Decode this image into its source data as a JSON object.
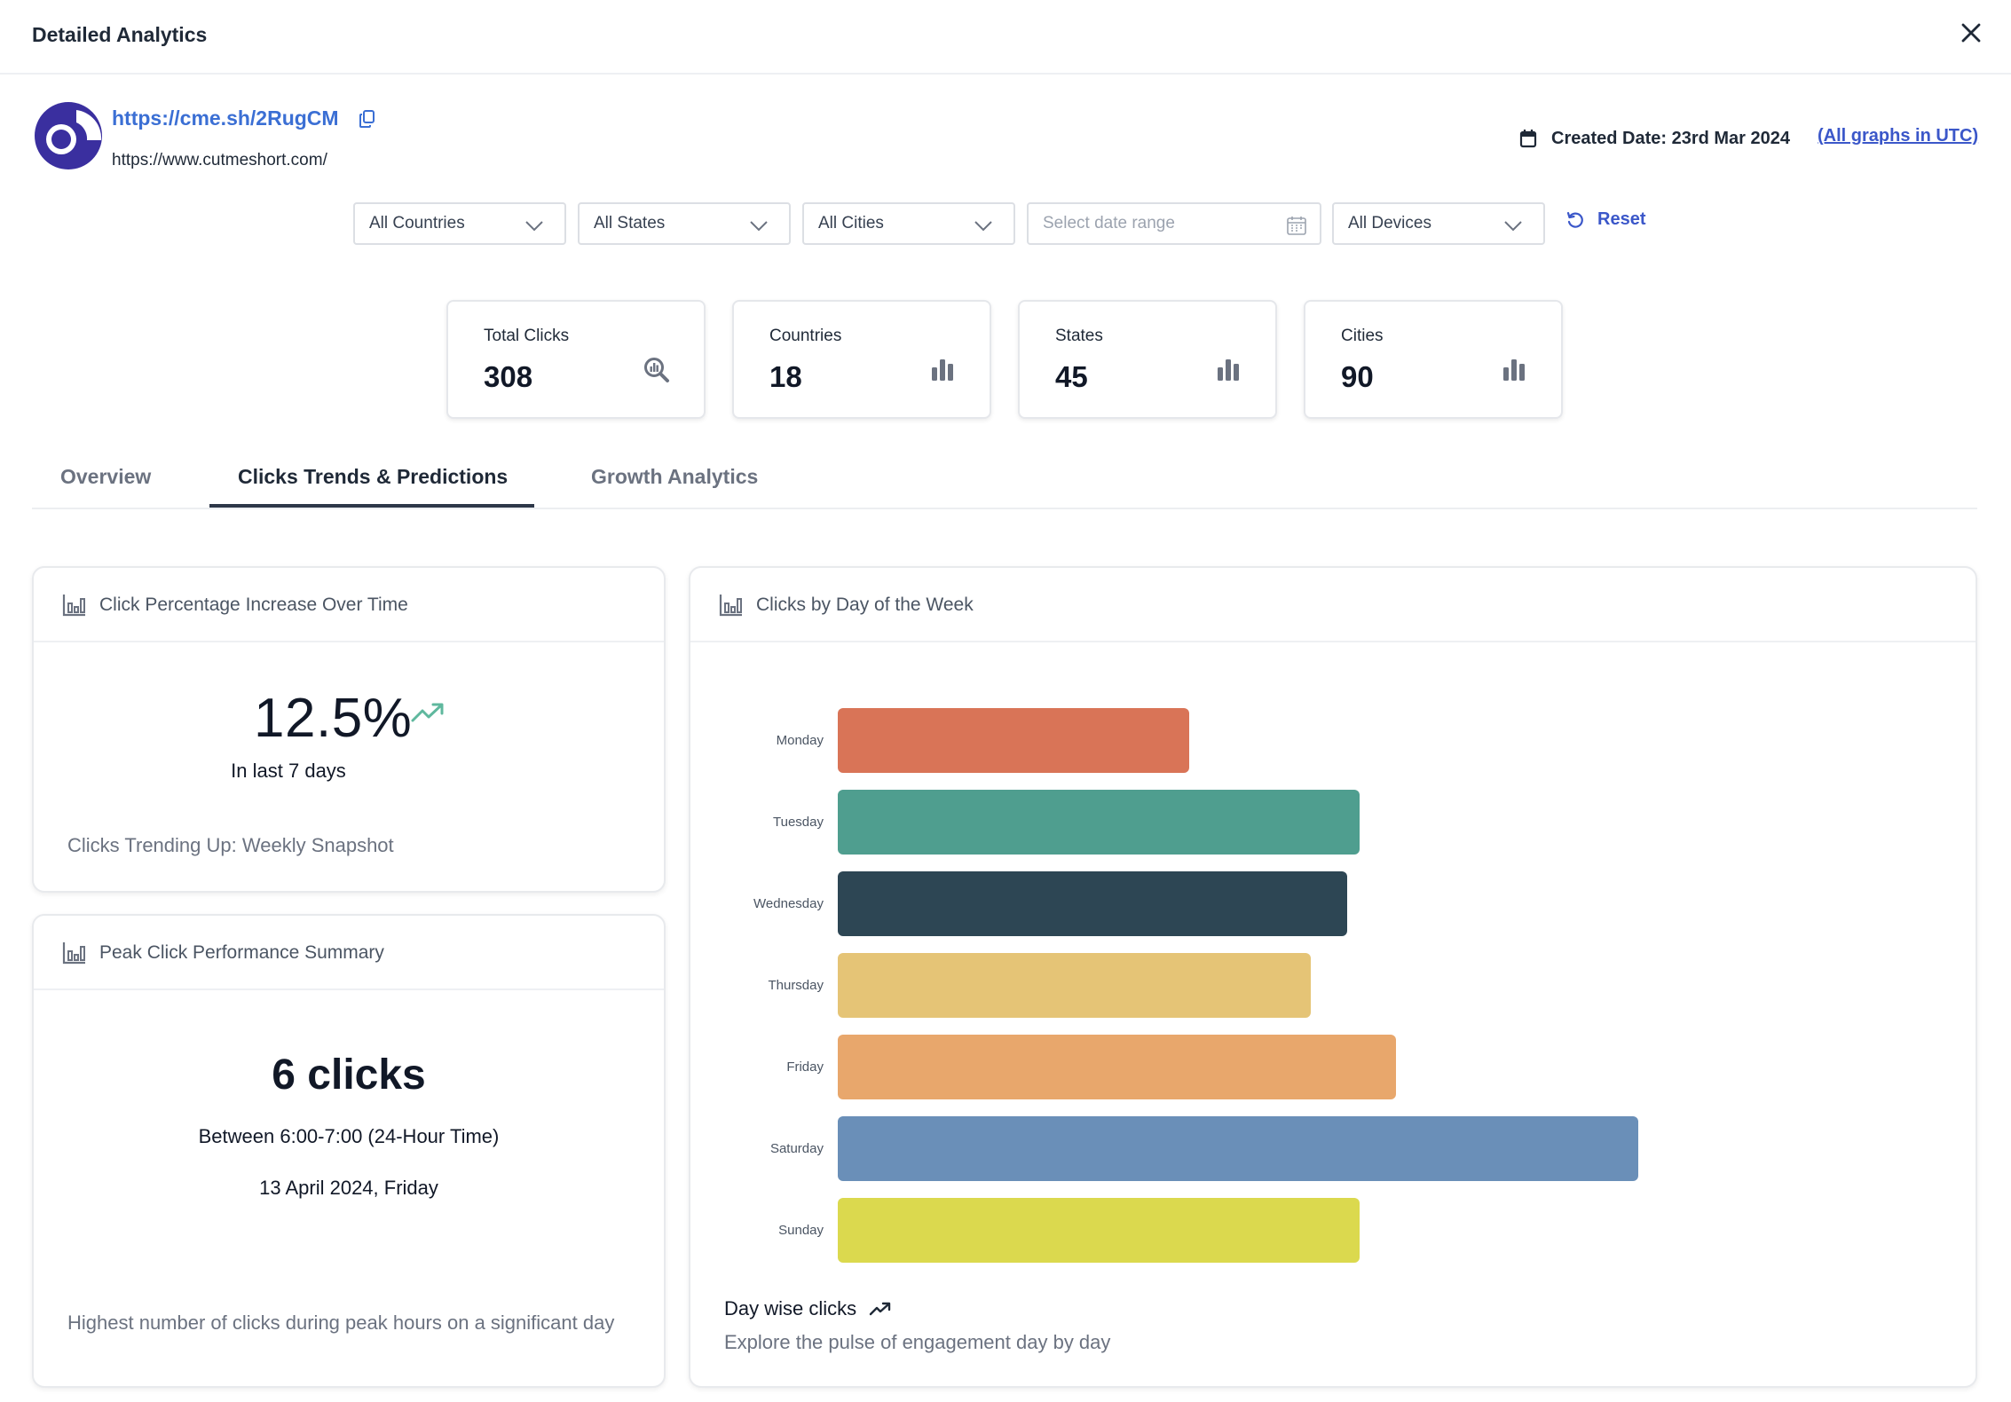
{
  "header": {
    "title": "Detailed Analytics"
  },
  "link": {
    "short_url": "https://cme.sh/2RugCM",
    "long_url": "https://www.cutmeshort.com/",
    "created_label": "Created Date: 23rd Mar 2024",
    "utc_link": "(All graphs in UTC)"
  },
  "filters": {
    "countries": "All Countries",
    "states": "All States",
    "cities": "All Cities",
    "date_placeholder": "Select date range",
    "devices": "All Devices",
    "reset": "Reset"
  },
  "stats": [
    {
      "label": "Total Clicks",
      "value": "308",
      "icon": "search-chart-icon"
    },
    {
      "label": "Countries",
      "value": "18",
      "icon": "bar-chart-icon"
    },
    {
      "label": "States",
      "value": "45",
      "icon": "bar-chart-icon"
    },
    {
      "label": "Cities",
      "value": "90",
      "icon": "bar-chart-icon"
    }
  ],
  "tabs": [
    {
      "label": "Overview",
      "active": false
    },
    {
      "label": "Clicks Trends & Predictions",
      "active": true
    },
    {
      "label": "Growth Analytics",
      "active": false
    }
  ],
  "pct_card": {
    "title": "Click Percentage Increase Over Time",
    "value": "12.5%",
    "period": "In last 7 days",
    "footer": "Clicks Trending Up: Weekly Snapshot"
  },
  "peak_card": {
    "title": "Peak Click Performance Summary",
    "value": "6 clicks",
    "time_range": "Between 6:00-7:00 (24-Hour Time)",
    "date": "13 April 2024, Friday",
    "footer": "Highest number of clicks during peak hours on a significant day"
  },
  "week_card": {
    "title": "Clicks by Day of the Week",
    "foot_title": "Day wise clicks",
    "foot_sub": "Explore the pulse of engagement day by day"
  },
  "chart_data": {
    "type": "bar",
    "orientation": "horizontal",
    "title": "Clicks by Day of the Week",
    "categories": [
      "Monday",
      "Tuesday",
      "Wednesday",
      "Thursday",
      "Friday",
      "Saturday",
      "Sunday"
    ],
    "values": [
      29,
      43,
      42,
      39,
      46,
      66,
      43
    ],
    "colors": [
      "#d97457",
      "#4f9e8f",
      "#2d4654",
      "#e5c476",
      "#e8a76c",
      "#6a8fb8",
      "#dbd94e"
    ],
    "xlim": [
      0,
      90
    ],
    "grid": false,
    "legend": "none"
  }
}
